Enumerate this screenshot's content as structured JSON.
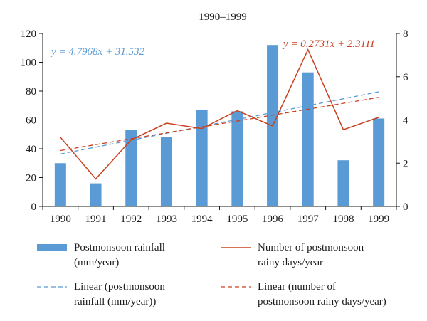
{
  "chart_data": {
    "type": "bar",
    "title": "1990–1999",
    "categories": [
      "1990",
      "1991",
      "1992",
      "1993",
      "1994",
      "1995",
      "1996",
      "1997",
      "1998",
      "1999"
    ],
    "series": [
      {
        "name": "Postmonsoon rainfall (mm/year)",
        "kind": "bar",
        "axis": "left",
        "color": "#5b9bd5",
        "values": [
          30,
          16,
          53,
          48,
          67,
          66,
          112,
          93,
          32,
          61
        ]
      },
      {
        "name": "Number of postmonsoon rainy days/year",
        "kind": "line",
        "axis": "right",
        "color": "#c8401e",
        "values": [
          3.2,
          1.27,
          3.08,
          3.85,
          3.6,
          4.43,
          3.72,
          7.25,
          3.55,
          4.12
        ]
      }
    ],
    "trendlines": [
      {
        "name": "Linear (postmonsoon rainfall (mm/year))",
        "axis": "left",
        "color": "#5b9bd5",
        "slope": 4.7968,
        "intercept": 31.532,
        "equation": "y = 4.7968x + 31.532"
      },
      {
        "name": "Linear (number of postmonsoon rainy days/year)",
        "axis": "right",
        "color": "#c8401e",
        "slope": 0.2731,
        "intercept": 2.3111,
        "equation": "y = 0.2731x + 2.3111"
      }
    ],
    "left_axis": {
      "ylim": [
        0,
        120
      ],
      "ticks": [
        "0",
        "20",
        "40",
        "60",
        "80",
        "100",
        "120"
      ]
    },
    "right_axis": {
      "ylim": [
        0,
        8
      ],
      "ticks": [
        "0",
        "2",
        "4",
        "6",
        "8"
      ]
    },
    "grid": false,
    "legend_position": "bottom",
    "legend": [
      {
        "label_line1": "Postmonsoon rainfall",
        "label_line2": "(mm/year)",
        "style": "bar",
        "color": "#5b9bd5"
      },
      {
        "label_line1": "Number of postmonsoon",
        "label_line2": "rainy days/year",
        "style": "line",
        "color": "#c8401e"
      },
      {
        "label_line1": "Linear (postmonsoon",
        "label_line2": "rainfall (mm/year))",
        "style": "dashed",
        "color": "#5b9bd5"
      },
      {
        "label_line1": "Linear (number of",
        "label_line2": "postmonsoon rainy days/year)",
        "style": "dashed",
        "color": "#c8401e"
      }
    ]
  }
}
